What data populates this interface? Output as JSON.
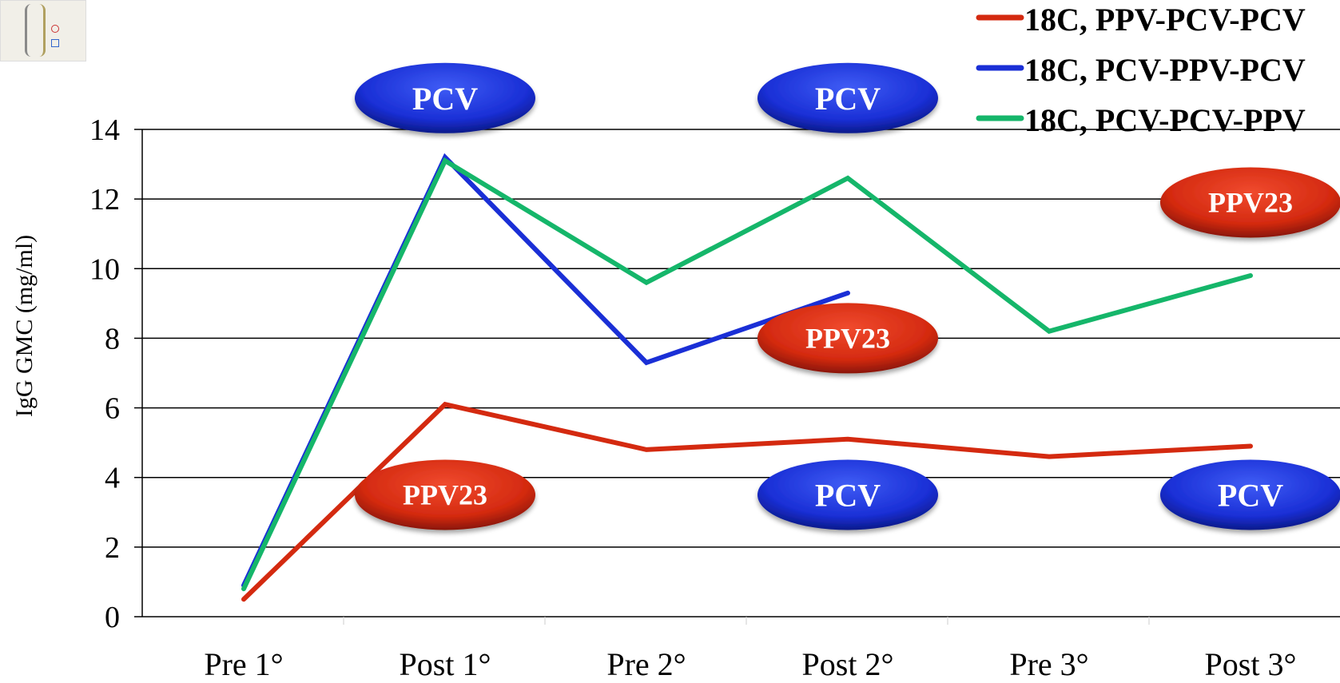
{
  "chart_data": {
    "type": "line",
    "ylabel": "IgG GMC (mg/ml)",
    "xlabel": "",
    "categories": [
      "Pre 1°",
      "Post 1°",
      "Pre 2°",
      "Post 2°",
      "Pre 3°",
      "Post 3°"
    ],
    "ylim": [
      0,
      14
    ],
    "yticks": [
      0,
      2,
      4,
      6,
      8,
      10,
      12,
      14
    ],
    "grid": true,
    "legend_position": "top-right",
    "series": [
      {
        "name": "18C, PPV-PCV-PCV",
        "color": "#d42a10",
        "values": [
          0.5,
          6.1,
          4.8,
          5.1,
          4.6,
          4.9
        ]
      },
      {
        "name": "18C, PCV-PPV-PCV",
        "color": "#1a2fd6",
        "values": [
          0.9,
          13.2,
          7.3,
          9.3,
          null,
          null
        ]
      },
      {
        "name": "18C, PCV-PCV-PPV",
        "color": "#15b66a",
        "values": [
          0.8,
          13.1,
          9.6,
          12.6,
          8.2,
          9.8
        ]
      }
    ],
    "annotations": [
      {
        "text": "PCV",
        "style": "blue",
        "category": 1,
        "y": 14.9
      },
      {
        "text": "PCV",
        "style": "blue",
        "category": 3,
        "y": 14.9
      },
      {
        "text": "PPV23",
        "style": "red",
        "category": 5,
        "y": 11.9
      },
      {
        "text": "PPV23",
        "style": "red",
        "category": 3,
        "y": 8.0
      },
      {
        "text": "PPV23",
        "style": "red",
        "category": 1,
        "y": 3.5
      },
      {
        "text": "PCV",
        "style": "blue",
        "category": 3,
        "y": 3.5
      },
      {
        "text": "PCV",
        "style": "blue",
        "category": 5,
        "y": 3.5
      }
    ]
  },
  "colors": {
    "blue_pill": "#1a2fd6",
    "red_pill": "#d42a10",
    "grid": "#000000"
  },
  "logo": {
    "icon": "caduceus-logo-icon"
  }
}
